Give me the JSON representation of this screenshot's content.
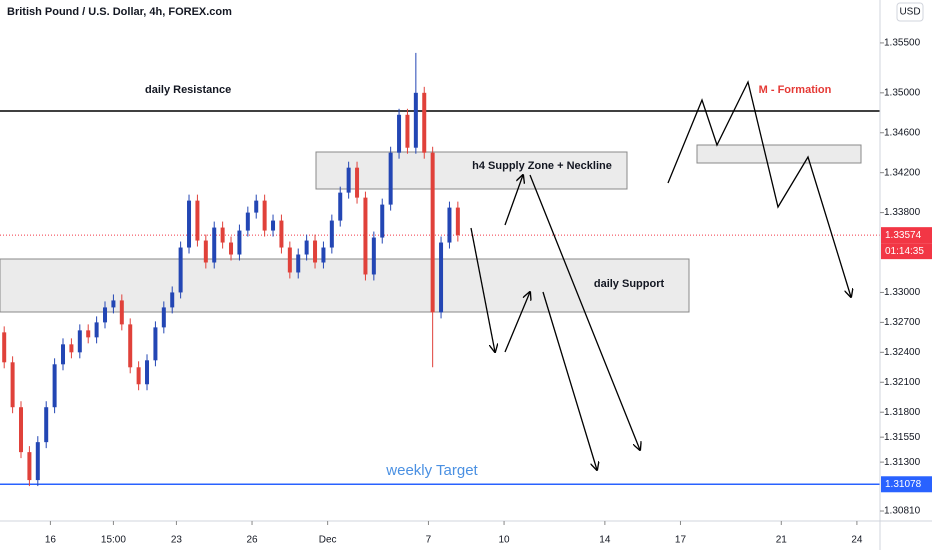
{
  "chart_data": {
    "type": "candlestick",
    "title": "British Pound / U.S. Dollar, 4h, FOREX.com",
    "currency": "USD",
    "up_color": "#2346b4",
    "down_color": "#e0413a",
    "x": [
      0,
      2,
      4,
      6,
      8,
      10,
      12,
      14,
      16,
      18,
      20,
      22,
      24,
      26,
      28,
      30,
      32,
      34,
      36,
      38,
      40,
      42,
      44,
      46,
      48,
      50,
      52,
      54,
      56,
      58,
      60,
      62,
      64,
      66,
      68,
      70,
      72,
      74,
      76,
      78,
      80,
      82,
      84,
      86,
      88,
      90,
      92,
      94,
      96,
      98,
      100,
      102,
      104,
      106,
      108
    ],
    "open": [
      1.326,
      1.323,
      1.3185,
      1.314,
      1.3112,
      1.315,
      1.3185,
      1.3228,
      1.3248,
      1.324,
      1.3262,
      1.3255,
      1.327,
      1.3285,
      1.3292,
      1.3268,
      1.3225,
      1.3208,
      1.3232,
      1.3265,
      1.3285,
      1.33,
      1.3345,
      1.3392,
      1.3352,
      1.333,
      1.3365,
      1.335,
      1.3338,
      1.3362,
      1.338,
      1.3392,
      1.3362,
      1.3372,
      1.3345,
      1.332,
      1.3338,
      1.3352,
      1.333,
      1.3345,
      1.3372,
      1.34,
      1.3425,
      1.3395,
      1.3318,
      1.3355,
      1.3388,
      1.344,
      1.3478,
      1.3445,
      1.35,
      1.344,
      1.328,
      1.335,
      1.3385
    ],
    "high": [
      1.3266,
      1.3236,
      1.3191,
      1.3146,
      1.3156,
      1.3191,
      1.3234,
      1.3254,
      1.3254,
      1.3268,
      1.3268,
      1.3276,
      1.3291,
      1.3298,
      1.3298,
      1.3274,
      1.3231,
      1.3238,
      1.3271,
      1.3291,
      1.3306,
      1.3351,
      1.3398,
      1.3398,
      1.3358,
      1.3371,
      1.3371,
      1.3356,
      1.3368,
      1.3386,
      1.3398,
      1.3398,
      1.3378,
      1.3378,
      1.3351,
      1.3344,
      1.3358,
      1.3358,
      1.3351,
      1.3378,
      1.3406,
      1.3431,
      1.3431,
      1.3401,
      1.3361,
      1.3394,
      1.3446,
      1.3484,
      1.3484,
      1.354,
      1.3506,
      1.3446,
      1.3356,
      1.3391,
      1.3391
    ],
    "low": [
      1.3224,
      1.3179,
      1.3134,
      1.3106,
      1.3106,
      1.3144,
      1.3179,
      1.3222,
      1.3234,
      1.3234,
      1.3249,
      1.3249,
      1.3264,
      1.3279,
      1.3262,
      1.3219,
      1.3202,
      1.3202,
      1.3226,
      1.3259,
      1.3279,
      1.3294,
      1.3339,
      1.3346,
      1.3324,
      1.3324,
      1.3344,
      1.3332,
      1.3332,
      1.3356,
      1.3374,
      1.3356,
      1.3356,
      1.3339,
      1.3314,
      1.3314,
      1.3332,
      1.3324,
      1.3324,
      1.3339,
      1.3366,
      1.3394,
      1.3389,
      1.3312,
      1.3312,
      1.3349,
      1.3382,
      1.3434,
      1.3439,
      1.3439,
      1.3434,
      1.3225,
      1.3274,
      1.3344,
      1.3351
    ],
    "close": [
      1.323,
      1.3185,
      1.314,
      1.3112,
      1.315,
      1.3185,
      1.3228,
      1.3248,
      1.324,
      1.3262,
      1.3255,
      1.327,
      1.3285,
      1.3292,
      1.3268,
      1.3225,
      1.3208,
      1.3232,
      1.3265,
      1.3285,
      1.33,
      1.3345,
      1.3392,
      1.3352,
      1.333,
      1.3365,
      1.335,
      1.3338,
      1.3362,
      1.338,
      1.3392,
      1.3362,
      1.3372,
      1.3345,
      1.332,
      1.3338,
      1.3352,
      1.333,
      1.3345,
      1.3372,
      1.34,
      1.3425,
      1.3395,
      1.3318,
      1.3355,
      1.3388,
      1.344,
      1.3478,
      1.3445,
      1.35,
      1.344,
      1.328,
      1.335,
      1.3385,
      1.33574
    ],
    "xlim": [
      -1,
      208.5
    ],
    "ylim": [
      1.3071,
      1.3593
    ],
    "xticks": [
      {
        "value": 11,
        "label": "16"
      },
      {
        "value": 26,
        "label": "15:00"
      },
      {
        "value": 41,
        "label": "23"
      },
      {
        "value": 59,
        "label": "26"
      },
      {
        "value": 77,
        "label": "Dec"
      },
      {
        "value": 101,
        "label": "7"
      },
      {
        "value": 119,
        "label": "10"
      },
      {
        "value": 143,
        "label": "14"
      },
      {
        "value": 161,
        "label": "17"
      },
      {
        "value": 185,
        "label": "21"
      },
      {
        "value": 203,
        "label": "24"
      }
    ],
    "yticks": [
      {
        "value": 1.355,
        "label": "1.35500"
      },
      {
        "value": 1.35,
        "label": "1.35000"
      },
      {
        "value": 1.346,
        "label": "1.34600"
      },
      {
        "value": 1.342,
        "label": "1.34200"
      },
      {
        "value": 1.338,
        "label": "1.33800"
      },
      {
        "value": 1.33,
        "label": "1.33000"
      },
      {
        "value": 1.327,
        "label": "1.32700"
      },
      {
        "value": 1.324,
        "label": "1.32400"
      },
      {
        "value": 1.321,
        "label": "1.32100"
      },
      {
        "value": 1.318,
        "label": "1.31800"
      },
      {
        "value": 1.3155,
        "label": "1.31550"
      },
      {
        "value": 1.313,
        "label": "1.31300"
      },
      {
        "value": 1.3081,
        "label": "1.30810"
      }
    ],
    "price_labels": [
      {
        "value": 1.33574,
        "label": "1.33574",
        "color": "#f23645"
      },
      {
        "value": 1.31078,
        "label": "1.31078",
        "color": "#2962ff"
      }
    ],
    "countdown": "01:14:35",
    "annotations": [
      "daily Resistance",
      "h4 Supply Zone + Neckline",
      "daily Support",
      "weekly Target",
      "M - Formation"
    ]
  }
}
